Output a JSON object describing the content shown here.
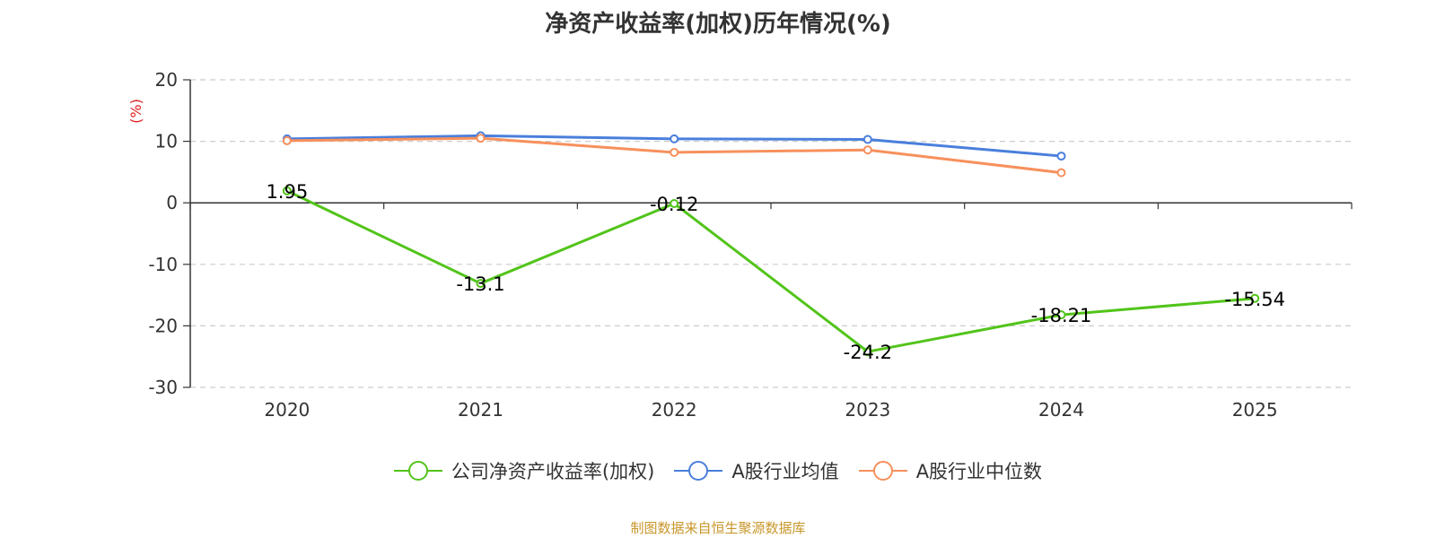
{
  "chart_data": {
    "type": "line",
    "title": "净资产收益率(加权)历年情况(%)",
    "ylabel": "(%)",
    "categories": [
      "2020",
      "2021",
      "2022",
      "2023",
      "2024",
      "2025"
    ],
    "ylim": [
      -30,
      20
    ],
    "yticks": [
      20,
      10,
      0,
      -10,
      -20,
      -30
    ],
    "grid": true,
    "legend_position": "bottom",
    "series": [
      {
        "name": "公司净资产收益率(加权)",
        "color": "#52c41a",
        "values": [
          1.95,
          -13.1,
          -0.12,
          -24.2,
          -18.21,
          -15.54
        ],
        "labels": [
          "1.95",
          "-13.1",
          "-0.12",
          "-24.2",
          "-18.21",
          "-15.54"
        ],
        "show_labels": true
      },
      {
        "name": "A股行业均值",
        "color": "#4a7fdc",
        "values": [
          10.4,
          10.9,
          10.4,
          10.3,
          7.6,
          null
        ],
        "show_labels": false
      },
      {
        "name": "A股行业中位数",
        "color": "#f7905c",
        "values": [
          10.1,
          10.5,
          8.2,
          8.6,
          4.9,
          null
        ],
        "show_labels": false
      }
    ]
  },
  "footer": {
    "source": "制图数据来自恒生聚源数据库"
  }
}
